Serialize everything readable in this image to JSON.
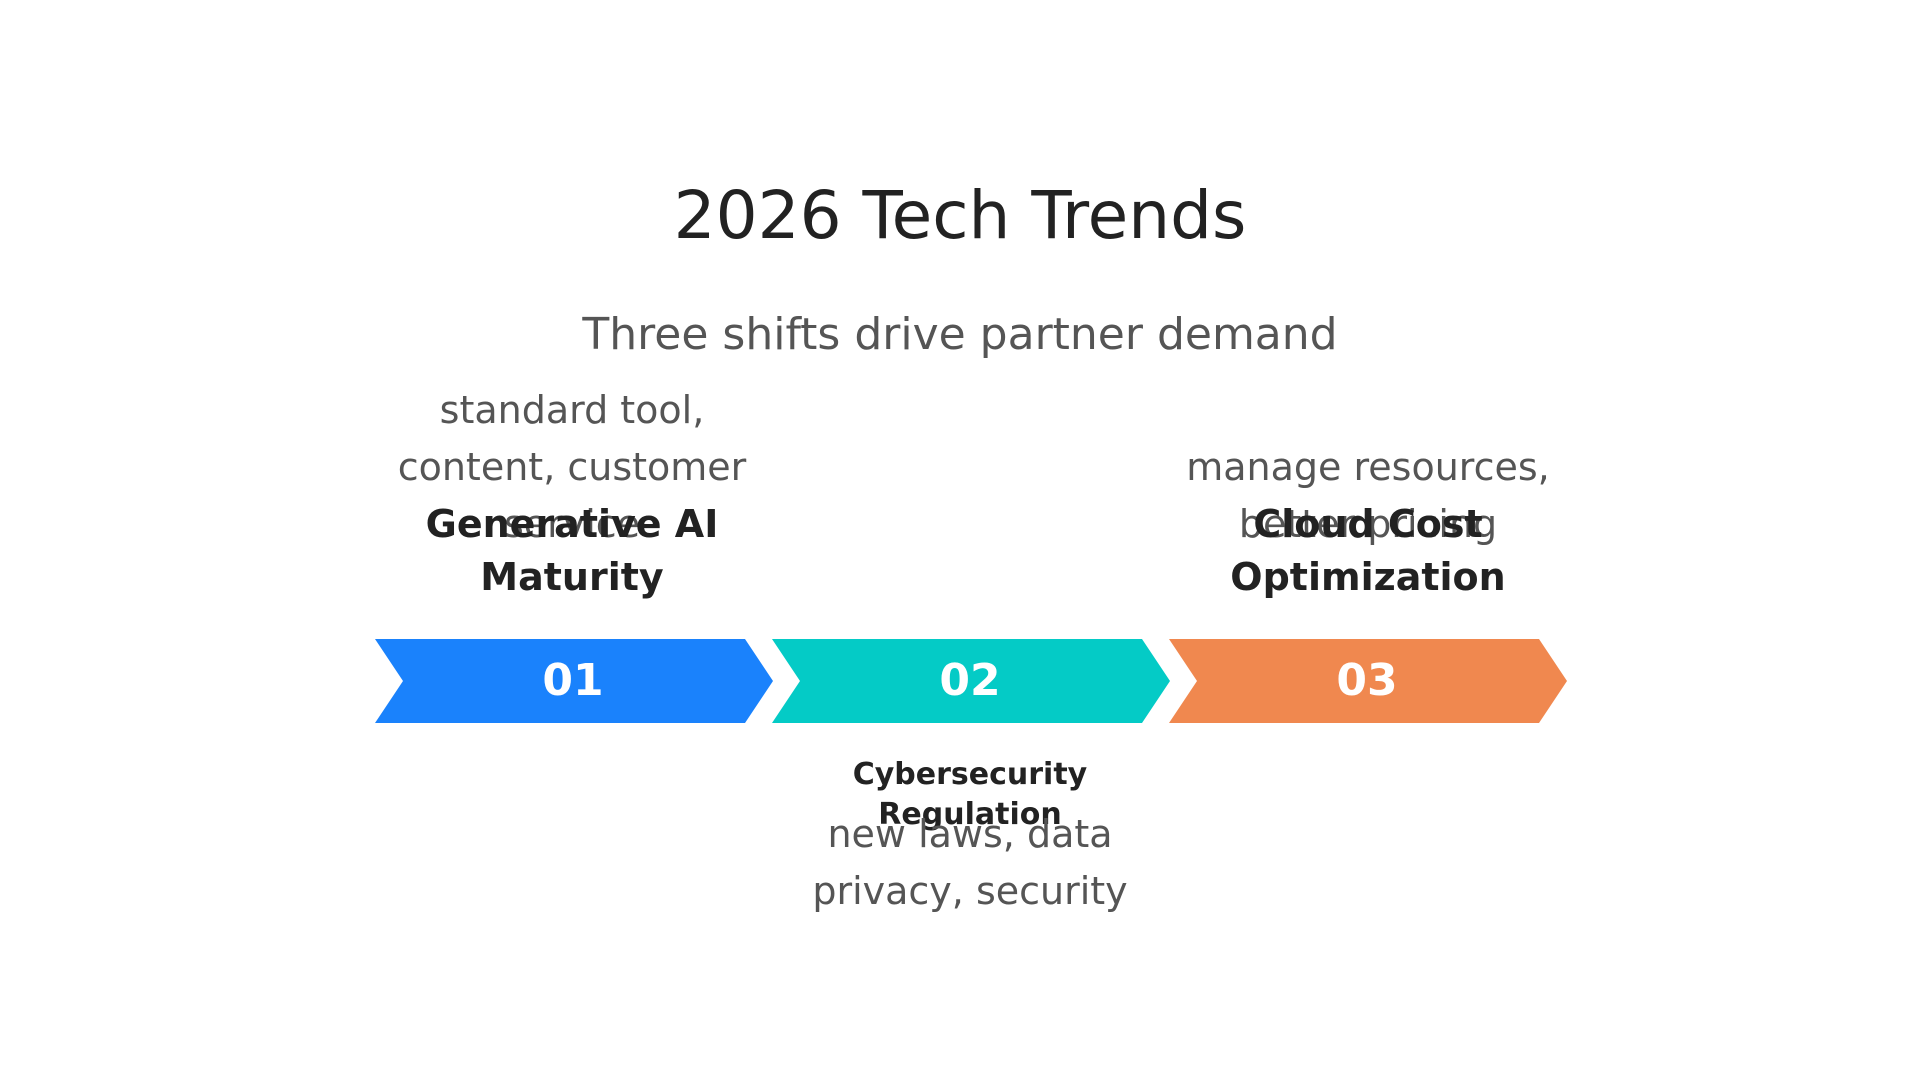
{
  "title": "2026 Tech Trends",
  "subtitle": "Three shifts drive partner demand",
  "colors": {
    "step1": "#1a82fc",
    "step2": "#04cbc6",
    "step3": "#f0884f"
  },
  "steps": [
    {
      "number": "01",
      "label": "Generative AI Maturity",
      "description": "standard tool, content, customer service"
    },
    {
      "number": "02",
      "label": "Cybersecurity Regulation",
      "description": "new laws, data privacy, security"
    },
    {
      "number": "03",
      "label": "Cloud Cost Optimization",
      "description": "manage resources, better pricing"
    }
  ]
}
